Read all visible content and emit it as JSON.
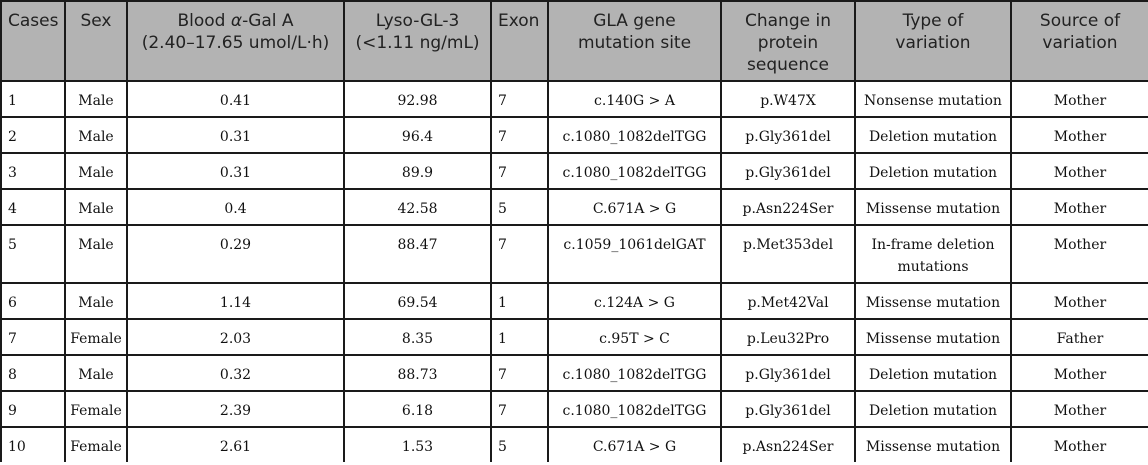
{
  "headers": {
    "cases": "Cases",
    "sex": "Sex",
    "blood_gal_line1_prefix": "Blood ",
    "blood_gal_alpha": "α",
    "blood_gal_line1_suffix": "-Gal A",
    "blood_gal_line2": "(2.40–17.65 umol/L·h)",
    "lyso_line1": "Lyso-GL-3",
    "lyso_line2": "(<1.11 ng/mL)",
    "exon": "Exon",
    "gla_line1": "GLA gene",
    "gla_line2": "mutation site",
    "change_line1": "Change in",
    "change_line2": "protein",
    "change_line3": "sequence",
    "type_line1": "Type of",
    "type_line2": "variation",
    "source_line1": "Source of",
    "source_line2": "variation"
  },
  "rows": [
    {
      "case": "1",
      "sex": "Male",
      "blood": "0.41",
      "lyso": "92.98",
      "exon": "7",
      "site": "c.140G > A",
      "protein": "p.W47X",
      "type": [
        "Nonsense mutation"
      ],
      "source": "Mother"
    },
    {
      "case": "2",
      "sex": "Male",
      "blood": "0.31",
      "lyso": "96.4",
      "exon": "7",
      "site": "c.1080_1082delTGG",
      "protein": "p.Gly361del",
      "type": [
        "Deletion mutation"
      ],
      "source": "Mother"
    },
    {
      "case": "3",
      "sex": "Male",
      "blood": "0.31",
      "lyso": "89.9",
      "exon": "7",
      "site": "c.1080_1082delTGG",
      "protein": "p.Gly361del",
      "type": [
        "Deletion mutation"
      ],
      "source": "Mother"
    },
    {
      "case": "4",
      "sex": "Male",
      "blood": "0.4",
      "lyso": "42.58",
      "exon": "5",
      "site": "C.671A > G",
      "protein": "p.Asn224Ser",
      "type": [
        "Missense mutation"
      ],
      "source": "Mother"
    },
    {
      "case": "5",
      "sex": "Male",
      "blood": "0.29",
      "lyso": "88.47",
      "exon": "7",
      "site": "c.1059_1061delGAT",
      "protein": "p.Met353del",
      "type": [
        "In-frame deletion",
        "mutations"
      ],
      "source": "Mother"
    },
    {
      "case": "6",
      "sex": "Male",
      "blood": "1.14",
      "lyso": "69.54",
      "exon": "1",
      "site": "c.124A > G",
      "protein": "p.Met42Val",
      "type": [
        "Missense mutation"
      ],
      "source": "Mother"
    },
    {
      "case": "7",
      "sex": "Female",
      "blood": "2.03",
      "lyso": "8.35",
      "exon": "1",
      "site": "c.95T > C",
      "protein": "p.Leu32Pro",
      "type": [
        "Missense mutation"
      ],
      "source": "Father"
    },
    {
      "case": "8",
      "sex": "Male",
      "blood": "0.32",
      "lyso": "88.73",
      "exon": "7",
      "site": "c.1080_1082delTGG",
      "protein": "p.Gly361del",
      "type": [
        "Deletion mutation"
      ],
      "source": "Mother"
    },
    {
      "case": "9",
      "sex": "Female",
      "blood": "2.39",
      "lyso": "6.18",
      "exon": "7",
      "site": "c.1080_1082delTGG",
      "protein": "p.Gly361del",
      "type": [
        "Deletion mutation"
      ],
      "source": "Mother"
    },
    {
      "case": "10",
      "sex": "Female",
      "blood": "2.61",
      "lyso": "1.53",
      "exon": "5",
      "site": "C.671A > G",
      "protein": "p.Asn224Ser",
      "type": [
        "Missense mutation"
      ],
      "source": "Mother"
    }
  ]
}
